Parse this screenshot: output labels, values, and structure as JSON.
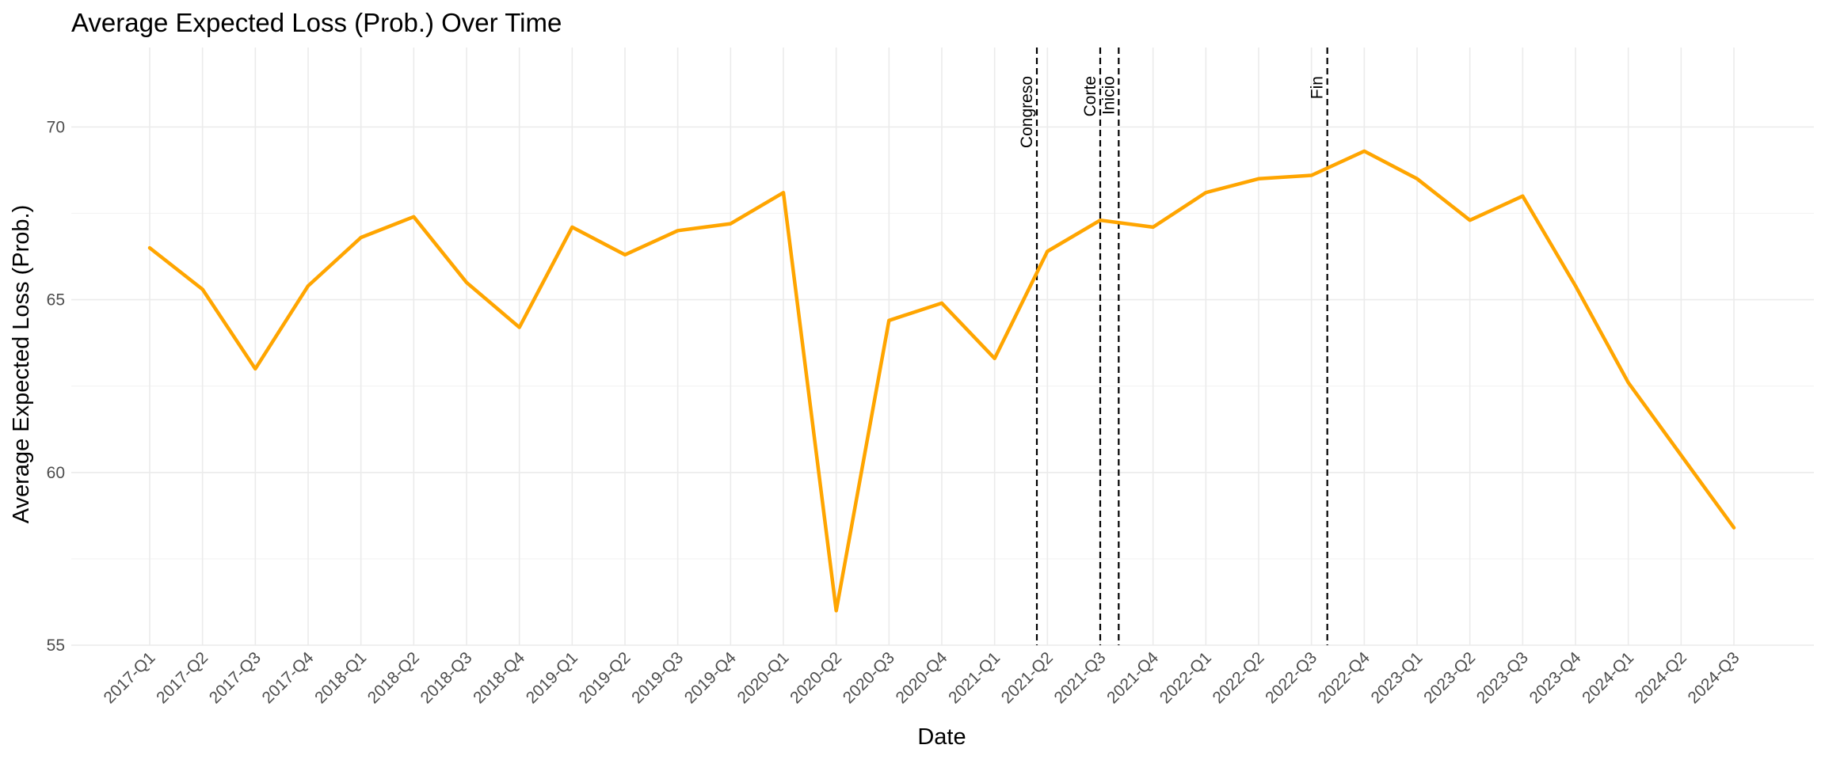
{
  "chart_data": {
    "type": "line",
    "title": "Average Expected Loss (Prob.) Over Time",
    "xlabel": "Date",
    "ylabel": "Average Expected Loss (Prob.)",
    "categories": [
      "2017-Q1",
      "2017-Q2",
      "2017-Q3",
      "2017-Q4",
      "2018-Q1",
      "2018-Q2",
      "2018-Q3",
      "2018-Q4",
      "2019-Q1",
      "2019-Q2",
      "2019-Q3",
      "2019-Q4",
      "2020-Q1",
      "2020-Q2",
      "2020-Q3",
      "2020-Q4",
      "2021-Q1",
      "2021-Q2",
      "2021-Q3",
      "2021-Q4",
      "2022-Q1",
      "2022-Q2",
      "2022-Q3",
      "2022-Q4",
      "2023-Q1",
      "2023-Q2",
      "2023-Q3",
      "2023-Q4",
      "2024-Q1",
      "2024-Q2",
      "2024-Q3"
    ],
    "series": [
      {
        "values": [
          66.5,
          65.3,
          63.0,
          65.4,
          66.8,
          67.4,
          65.5,
          64.2,
          67.1,
          66.3,
          67.0,
          67.2,
          68.1,
          56.0,
          64.4,
          64.9,
          63.3,
          66.4,
          67.3,
          67.1,
          68.1,
          68.5,
          68.6,
          69.3,
          68.5,
          67.3,
          68.0,
          65.4,
          62.6,
          60.5,
          58.4
        ]
      }
    ],
    "ylim": [
      55,
      72.3
    ],
    "yticks": [
      55,
      60,
      65,
      70
    ],
    "vertical_lines": [
      {
        "label": "Congreso",
        "x": 16.8
      },
      {
        "label": "Corte",
        "x": 18.0
      },
      {
        "label": "Inicio",
        "x": 18.35
      },
      {
        "label": "Fin",
        "x": 22.3
      }
    ],
    "grid": true,
    "line_color": "#FFA500",
    "vline_color": "#000000",
    "vline_style": "dashed",
    "legend": "none"
  }
}
